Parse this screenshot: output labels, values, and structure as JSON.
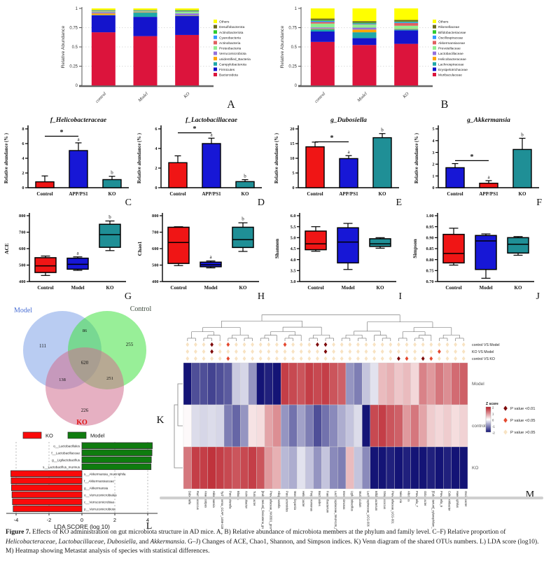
{
  "caption": {
    "segments": [
      {
        "t": "Figure 7.",
        "b": true
      },
      {
        "t": "  Effects of KO administration on gut microbiota structure in AD mice. A, B) Relative abundance of microbiota members at the phylum and family level. C–F) Relative proportion of "
      },
      {
        "t": "Helicobacteraceae",
        "i": true
      },
      {
        "t": ", "
      },
      {
        "t": "Lactobacillaceae",
        "i": true
      },
      {
        "t": ", "
      },
      {
        "t": "Dubosiella",
        "i": true
      },
      {
        "t": ", and "
      },
      {
        "t": "Akkermansia",
        "i": true
      },
      {
        "t": ". G–J) Changes of ACE, Chao1, Shannon, and Simpson indices. K) Venn diagram of the shared OTUs numbers. L) LDA score (log10). M) Heatmap showing Metastat analysis of species with statistical differences."
      }
    ]
  },
  "chart_data": [
    {
      "panel": "A",
      "type": "stacked_bar",
      "ylabel": "Relative Abundance",
      "categories": [
        "control",
        "Model",
        "KO"
      ],
      "yticks": [
        "0",
        "0.25",
        "0.5",
        "0.75",
        "1"
      ],
      "ytick_values": [
        0,
        0.25,
        0.5,
        0.75,
        1
      ],
      "series": [
        {
          "name": "Others",
          "color": "#FFFF00",
          "values": [
            0.02,
            0.02,
            0.02
          ]
        },
        {
          "name": "Desulfobacterota",
          "color": "#6B6B1F",
          "values": [
            0.005,
            0.005,
            0.005
          ]
        },
        {
          "name": "Actinobacteriota",
          "color": "#2ECC2E",
          "values": [
            0.005,
            0.005,
            0.01
          ]
        },
        {
          "name": "Cyanobacteria",
          "color": "#3399FF",
          "values": [
            0.005,
            0.005,
            0.005
          ]
        },
        {
          "name": "Actinobacteria",
          "color": "#E06060",
          "values": [
            0.005,
            0.005,
            0.005
          ]
        },
        {
          "name": "Proteobacteria",
          "color": "#90EE90",
          "values": [
            0.01,
            0.007,
            0.02
          ]
        },
        {
          "name": "Verrucomicrobiota",
          "color": "#9370DB",
          "values": [
            0.015,
            0.003,
            0.025
          ]
        },
        {
          "name": "unidentified_Bacteria",
          "color": "#FFA500",
          "values": [
            0.02,
            0.005,
            0.005
          ]
        },
        {
          "name": "Campylobacterota",
          "color": "#1FA8A8",
          "values": [
            0.005,
            0.055,
            0.005
          ]
        },
        {
          "name": "Firmicutes",
          "color": "#1414CC",
          "values": [
            0.22,
            0.25,
            0.245
          ]
        },
        {
          "name": "Bacteroidota",
          "color": "#DC143C",
          "values": [
            0.69,
            0.64,
            0.655
          ]
        }
      ]
    },
    {
      "panel": "B",
      "type": "stacked_bar",
      "ylabel": "Relative Abundance",
      "categories": [
        "control",
        "Model",
        "KO"
      ],
      "yticks": [
        "0",
        "0.25",
        "0.5",
        "0.75",
        "1"
      ],
      "ytick_values": [
        0,
        0.25,
        0.5,
        0.75,
        1
      ],
      "series": [
        {
          "name": "Others",
          "color": "#FFFF00",
          "values": [
            0.132,
            0.165,
            0.15
          ]
        },
        {
          "name": "Rikenellaceae",
          "color": "#6B6B1F",
          "values": [
            0.02,
            0.02,
            0.02
          ]
        },
        {
          "name": "Bifidobacteriaceae",
          "color": "#2ECC2E",
          "values": [
            0.01,
            0.01,
            0.008
          ]
        },
        {
          "name": "Oscillospiraceae",
          "color": "#3399FF",
          "values": [
            0.015,
            0.01,
            0.012
          ]
        },
        {
          "name": "Akkermansiaceae",
          "color": "#E06060",
          "values": [
            0.02,
            0.005,
            0.035
          ]
        },
        {
          "name": "Prevotellaceae",
          "color": "#90EE90",
          "values": [
            0.05,
            0.04,
            0.04
          ]
        },
        {
          "name": "Lactobacillaceae",
          "color": "#9370DB",
          "values": [
            0.015,
            0.025,
            0.003
          ]
        },
        {
          "name": "Helicobacteraceae",
          "color": "#FFA500",
          "values": [
            0.008,
            0.035,
            0.005
          ]
        },
        {
          "name": "Lachnospiraceae",
          "color": "#1FA8A8",
          "values": [
            0.03,
            0.075,
            0.012
          ]
        },
        {
          "name": "Erysipelotrichaceae",
          "color": "#1414CC",
          "values": [
            0.135,
            0.09,
            0.175
          ]
        },
        {
          "name": "Muribaculaceae",
          "color": "#DC143C",
          "values": [
            0.565,
            0.525,
            0.54
          ]
        }
      ]
    },
    {
      "panel": "C",
      "type": "bar",
      "title": "f_Helicobacteraceae",
      "ylabel": "Relative abundance (% )",
      "ylim": [
        0,
        8
      ],
      "yticks": [
        0,
        2,
        4,
        6,
        8
      ],
      "categories": [
        "Control",
        "APP/PS1",
        "KO"
      ],
      "values": [
        0.8,
        5.05,
        1.1
      ],
      "errors": [
        0.8,
        1.05,
        0.45
      ],
      "bar_colors": [
        "#F01515",
        "#1717D6",
        "#1F8F96"
      ],
      "letters": [
        "",
        "a",
        "b"
      ],
      "sig": {
        "from": 0,
        "to": 1,
        "y": 7.0,
        "label": "*"
      }
    },
    {
      "panel": "D",
      "type": "bar",
      "title": "f_Lactobacillaceae",
      "ylabel": "Relative abundance (% )",
      "ylim": [
        0,
        6
      ],
      "yticks": [
        0,
        2,
        4,
        6
      ],
      "categories": [
        "Control",
        "APP/PS1",
        "KO"
      ],
      "values": [
        2.55,
        4.5,
        0.62
      ],
      "errors": [
        0.7,
        0.55,
        0.2
      ],
      "bar_colors": [
        "#F01515",
        "#1717D6",
        "#1F8F96"
      ],
      "letters": [
        "",
        "a",
        "b"
      ],
      "sig": {
        "from": 0,
        "to": 1,
        "y": 5.6,
        "label": "*"
      }
    },
    {
      "panel": "E",
      "type": "bar",
      "title": "g_Dubosiella",
      "ylabel": "Relative abundance (% )",
      "ylim": [
        0,
        20
      ],
      "yticks": [
        0,
        5,
        10,
        15,
        20
      ],
      "categories": [
        "Control",
        "APP/PS1",
        "KO"
      ],
      "values": [
        13.9,
        9.9,
        17.0
      ],
      "errors": [
        1.6,
        1.0,
        1.4
      ],
      "bar_colors": [
        "#F01515",
        "#1717D6",
        "#1F8F96"
      ],
      "letters": [
        "",
        "a",
        "b"
      ],
      "sig": {
        "from": 0,
        "to": 1,
        "y": 15.6,
        "label": "*"
      }
    },
    {
      "panel": "F",
      "type": "bar",
      "title": "g_Akkermansia",
      "ylabel": "Relative abundance (% )",
      "ylim": [
        0,
        5
      ],
      "yticks": [
        0,
        1,
        2,
        3,
        4,
        5
      ],
      "categories": [
        "Control",
        "APP/PS1",
        "KO"
      ],
      "values": [
        1.7,
        0.38,
        3.25
      ],
      "errors": [
        0.35,
        0.22,
        0.95
      ],
      "bar_colors": [
        "#1717D6",
        "#F01515",
        "#1F8F96"
      ],
      "letters": [
        "",
        "a",
        "b"
      ],
      "sig": {
        "from": 0,
        "to": 1,
        "y": 2.3,
        "label": "*"
      }
    },
    {
      "panel": "G",
      "type": "box",
      "ylabel": "ACE",
      "ylim": [
        400,
        800
      ],
      "yticks": [
        400,
        500,
        600,
        700,
        800
      ],
      "ytick_decimals": 0,
      "categories": [
        "Control",
        "Model",
        "KO"
      ],
      "boxes": [
        {
          "whisker_low": 437,
          "q1": 455,
          "median": 495,
          "q3": 545,
          "whisker_high": 555,
          "color": "#F01515",
          "letter": ""
        },
        {
          "whisker_low": 468,
          "q1": 475,
          "median": 505,
          "q3": 542,
          "whisker_high": 550,
          "color": "#1717D6",
          "letter": "a"
        },
        {
          "whisker_low": 588,
          "q1": 608,
          "median": 685,
          "q3": 748,
          "whisker_high": 768,
          "color": "#1F8F96",
          "letter": "b"
        }
      ]
    },
    {
      "panel": "H",
      "type": "box",
      "ylabel": "Chao1",
      "ylim": [
        400,
        800
      ],
      "yticks": [
        400,
        500,
        600,
        700,
        800
      ],
      "ytick_decimals": 0,
      "categories": [
        "Control",
        "Model",
        "KO"
      ],
      "boxes": [
        {
          "whisker_low": 497,
          "q1": 510,
          "median": 637,
          "q3": 730,
          "whisker_high": 733,
          "color": "#F01515",
          "letter": ""
        },
        {
          "whisker_low": 483,
          "q1": 490,
          "median": 502,
          "q3": 518,
          "whisker_high": 525,
          "color": "#1717D6",
          "letter": "a"
        },
        {
          "whisker_low": 583,
          "q1": 607,
          "median": 655,
          "q3": 730,
          "whisker_high": 757,
          "color": "#1F8F96",
          "letter": "b"
        }
      ]
    },
    {
      "panel": "I",
      "type": "box",
      "ylabel": "Shannon",
      "ylim": [
        3.0,
        6.0
      ],
      "yticks": [
        3.0,
        3.5,
        4.0,
        4.5,
        5.0,
        5.5,
        6.0
      ],
      "ytick_decimals": 1,
      "categories": [
        "Control",
        "Model",
        "KO"
      ],
      "boxes": [
        {
          "whisker_low": 4.38,
          "q1": 4.45,
          "median": 4.72,
          "q3": 5.3,
          "whisker_high": 5.5,
          "color": "#F01515",
          "letter": ""
        },
        {
          "whisker_low": 3.55,
          "q1": 3.85,
          "median": 4.8,
          "q3": 5.45,
          "whisker_high": 5.65,
          "color": "#1717D6",
          "letter": ""
        },
        {
          "whisker_low": 4.52,
          "q1": 4.6,
          "median": 4.72,
          "q3": 4.95,
          "whisker_high": 5.0,
          "color": "#1F8F96",
          "letter": ""
        }
      ]
    },
    {
      "panel": "J",
      "type": "box",
      "ylabel": "Simpson",
      "ylim": [
        0.7,
        1.0
      ],
      "yticks": [
        0.7,
        0.75,
        0.8,
        0.85,
        0.9,
        0.95,
        1.0
      ],
      "ytick_decimals": 2,
      "categories": [
        "Control",
        "Model",
        "KO"
      ],
      "boxes": [
        {
          "whisker_low": 0.775,
          "q1": 0.785,
          "median": 0.828,
          "q3": 0.915,
          "whisker_high": 0.943,
          "color": "#F01515",
          "letter": ""
        },
        {
          "whisker_low": 0.715,
          "q1": 0.755,
          "median": 0.885,
          "q3": 0.91,
          "whisker_high": 0.917,
          "color": "#1717D6",
          "letter": ""
        },
        {
          "whisker_low": 0.82,
          "q1": 0.83,
          "median": 0.87,
          "q3": 0.9,
          "whisker_high": 0.905,
          "color": "#1F8F96",
          "letter": ""
        }
      ]
    },
    {
      "panel": "K",
      "type": "venn",
      "sets": [
        {
          "label": "Model",
          "label_color": "#4a6fd4",
          "fill": "#7FA3E8",
          "unique": 111
        },
        {
          "label": "Control",
          "label_color": "#3d4a3d",
          "fill": "#44E244",
          "unique": 255
        },
        {
          "label": "KO",
          "label_color": "#e01010",
          "fill": "#D2708F",
          "unique": 226
        }
      ],
      "overlaps": {
        "model_control": 86,
        "model_ko": 138,
        "control_ko": 251,
        "all": 620
      }
    },
    {
      "panel": "L",
      "type": "lda_bar",
      "xlabel": "LDA SCORE (log 10)",
      "xticks": [
        -4,
        -2,
        0,
        2,
        4
      ],
      "xlim": [
        -4.6,
        4.6
      ],
      "legend": [
        {
          "label": "KO",
          "color": "#FA0A0A"
        },
        {
          "label": "Model",
          "color": "#0F7C0F"
        }
      ],
      "bars": [
        {
          "label": "o__Lactobacillales",
          "group": "Model",
          "value": 4.28
        },
        {
          "label": "f__Lactobacillaceae",
          "group": "Model",
          "value": 4.26
        },
        {
          "label": "g__Ligilactobacillus",
          "group": "Model",
          "value": 4.22
        },
        {
          "label": "s__Lactobacillus_murinus",
          "group": "Model",
          "value": 4.2
        },
        {
          "label": "s__Akkermansia_muciniphila",
          "group": "KO",
          "value": -4.32
        },
        {
          "label": "f__Akkermansiaceae",
          "group": "KO",
          "value": -4.3
        },
        {
          "label": "g__Akkermansia",
          "group": "KO",
          "value": -4.28
        },
        {
          "label": "o__Verrucomicrobiales",
          "group": "KO",
          "value": -4.25
        },
        {
          "label": "c__Verrucomicrobiae",
          "group": "KO",
          "value": -4.22
        },
        {
          "label": "p__Verrucomicrobiota",
          "group": "KO",
          "value": -4.18
        }
      ]
    },
    {
      "panel": "M",
      "type": "heatmap",
      "rows": [
        "Model",
        "control",
        "KO"
      ],
      "columns": [
        "Dubosiella",
        "Ruminococcus",
        "Anaerostipes",
        "Akkermansia",
        "Tychonema_CCAP_1459-11B",
        "Parasutterella",
        "Blautia",
        "Acinetobacter",
        "Turicibacter",
        "[Eubacterium]_fissicatena_group",
        "Prevotellaceae_NK3B31_group",
        "Alloprevotella",
        "Parabacteroides",
        "Marvinbryantia",
        "Helicobacter",
        "Porphyromonas",
        "Bacteroides",
        "Faecalibacterium",
        "Lachnospiraceae_NK4A136_group",
        "Intestinimonas",
        "Ligilactobacillus",
        "Muribaculum",
        "Lachnospiraceae_UCG-006",
        "Bifidobacterium",
        "Streptococcus",
        "Prevotellaceae_UCG-001",
        "Neisseria",
        "Alistipes",
        "Prevotella_7",
        "Odoribacter",
        "[Eubacterium]_xylanophilum_group",
        "Prevotella_9",
        "Colidextribacter",
        "Haemophilus",
        "Oscillibacter"
      ],
      "zlim": [
        -2,
        2
      ],
      "z_matrix": [
        [
          -2,
          -1.5,
          -1.5,
          -1.6,
          -1.5,
          -1.4,
          -0.45,
          -0.35,
          -0.9,
          -2,
          -1.9,
          -2,
          1.7,
          1.6,
          1.5,
          1.7,
          1.6,
          1.7,
          1.5,
          1.4,
          -0.9,
          -1.1,
          -0.5,
          -0.25,
          0.6,
          0.7,
          0.5,
          0.6,
          0.35,
          1.1,
          0.9,
          1.2,
          1,
          1.3,
          1.4
        ],
        [
          0.05,
          -0.3,
          -0.35,
          -0.3,
          -0.35,
          -1.1,
          -1.3,
          -0.9,
          0.25,
          0.3,
          0.8,
          1,
          -0.9,
          -1.2,
          -0.8,
          -1.1,
          -1.5,
          -1.2,
          -1,
          -0.7,
          -0.5,
          -0.3,
          -2,
          1.6,
          1.7,
          1.5,
          1.4,
          0.9,
          1.2,
          0.8,
          0.45,
          0.35,
          0.45,
          0.3,
          0.4
        ],
        [
          1.2,
          1.7,
          1.7,
          1.8,
          1.7,
          1.6,
          1.5,
          1.6,
          1.7,
          1.5,
          0.9,
          0.7,
          -0.6,
          -0.7,
          -0.25,
          -0.5,
          -0.9,
          -0.5,
          -1,
          -1.1,
          0.6,
          -0.5,
          -1,
          -2,
          -2,
          -1.9,
          -2,
          -1.9,
          -2,
          -2,
          -1.9,
          -2,
          -1.9,
          -2,
          -2
        ]
      ],
      "sig_rows": [
        {
          "label": "control VS Model",
          "marks": "lllhlmllllllmlllhhlllllllllllllllll"
        },
        {
          "label": "KO VS Model",
          "marks": "lllhlllllllllllllhlllllllllllllmlll"
        },
        {
          "label": "control VS KO",
          "marks": "lllllmllllllllllllllllllllhmlhmllll"
        }
      ],
      "z_legend": {
        "title": "Z score",
        "ticks": [
          "2",
          "1",
          "0",
          "-1",
          "-2"
        ]
      },
      "p_legend": [
        {
          "label": "P value <0.01",
          "level": "h"
        },
        {
          "label": "P value <0.05",
          "level": "m"
        },
        {
          "label": "P value >0.05",
          "level": "l"
        }
      ],
      "sig_colors": {
        "h": "#7E0A0A",
        "m": "#E4492F",
        "l": "#F8E3C3"
      }
    }
  ]
}
